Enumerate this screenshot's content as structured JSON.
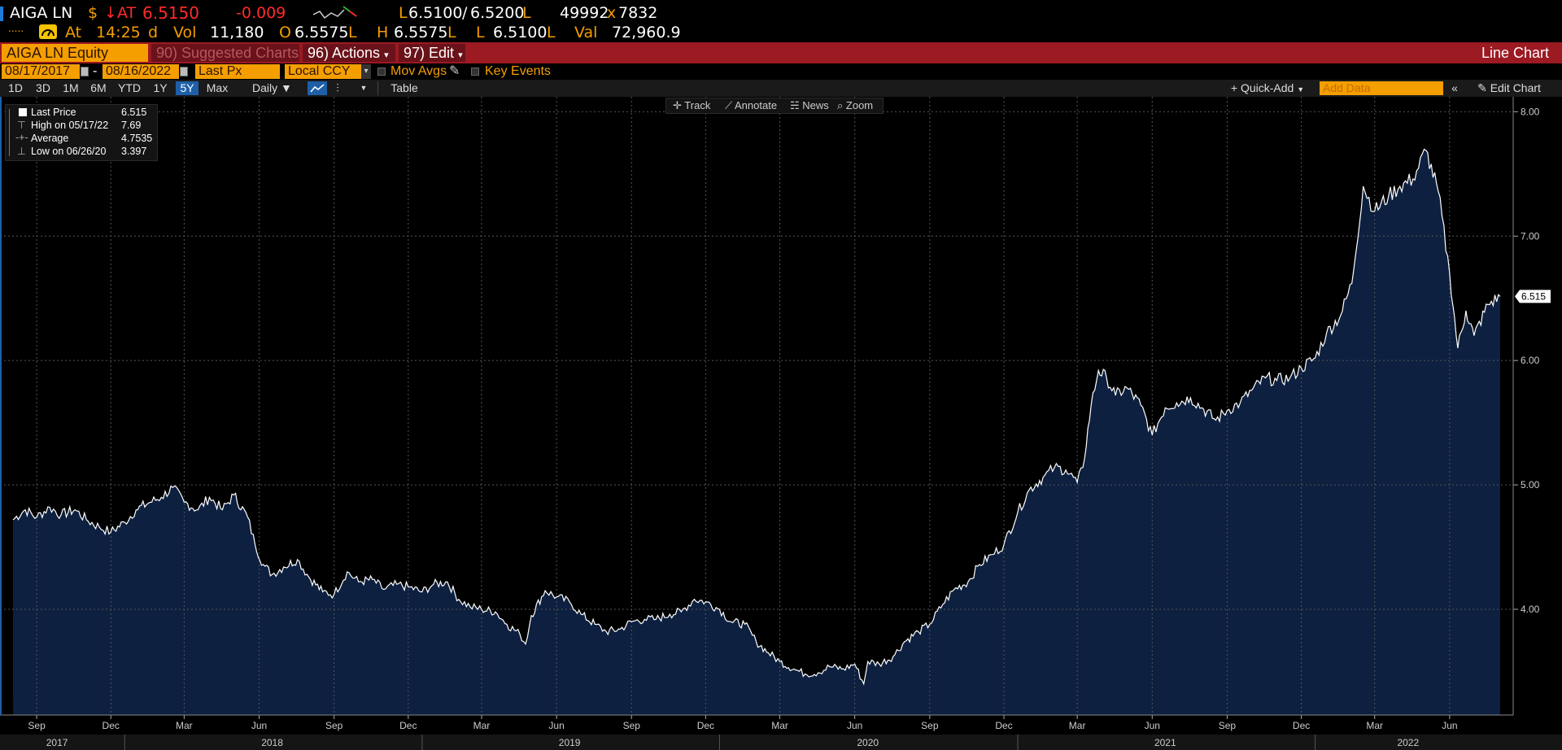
{
  "quote": {
    "ticker": "AIGA LN",
    "currency_sign": "$",
    "direction_arrow": "↓",
    "at_label": "AT",
    "last_price": "6.5150",
    "change": "-0.009",
    "bid": "6.5100",
    "bid_suffix": "L",
    "slash": "/",
    "ask": "6.5200",
    "ask_suffix": "L",
    "size": "49992",
    "size_x": "x",
    "size2": "7832",
    "dots": ".....",
    "at2": "At",
    "time": "14:25",
    "time_suffix": "d",
    "vol_label": "Vol",
    "vol": "11,180",
    "open_label": "O",
    "open": "6.5575",
    "open_suffix": "L",
    "high_label": "H",
    "high": "6.5575",
    "high_suffix": "L",
    "low_label": "L",
    "low": "6.5100",
    "low_suffix": "L",
    "val_label": "Val",
    "val": "72,960.9",
    "colors": {
      "price": "#ff2a2a",
      "label": "#f59e00",
      "value": "#ffffff"
    }
  },
  "redbar": {
    "security": "AIGA LN Equity",
    "suggested": "90) Suggested Charts",
    "actions": "96) Actions",
    "edit": "97) Edit",
    "title": "Line Chart"
  },
  "params": {
    "start_date": "08/17/2017",
    "dash": "-",
    "end_date": "08/16/2022",
    "field": "Last Px",
    "currency": "Local CCY",
    "mov_avgs": "Mov Avgs",
    "key_events": "Key Events"
  },
  "toolbar": {
    "periods": [
      "1D",
      "3D",
      "1M",
      "6M",
      "YTD",
      "1Y",
      "5Y",
      "Max"
    ],
    "active_period": "5Y",
    "frequency": "Daily",
    "table": "Table",
    "quick_add": "Quick-Add",
    "add_data_placeholder": "Add Data",
    "edit_chart": "Edit Chart"
  },
  "chart_buttons": {
    "track": "Track",
    "annotate": "Annotate",
    "news": "News",
    "zoom": "Zoom"
  },
  "legend": {
    "last_label": "Last Price",
    "last_value": "6.515",
    "high_label": "High on 05/17/22",
    "high_value": "7.69",
    "avg_label": "Average",
    "avg_value": "4.7535",
    "low_label": "Low on 06/26/20",
    "low_value": "3.397"
  },
  "chart_data": {
    "type": "area",
    "title": "",
    "xlabel": "",
    "ylabel": "",
    "y_ticks": [
      "8.00",
      "7.00",
      "6.00",
      "5.00",
      "4.00"
    ],
    "ylim": [
      3.15,
      8.12
    ],
    "last_value_label": "6.515",
    "x_month_labels": [
      "Sep",
      "Dec",
      "Mar",
      "Jun",
      "Sep",
      "Dec",
      "Mar",
      "Jun",
      "Sep",
      "Dec",
      "Mar",
      "Jun",
      "Sep",
      "Dec",
      "Mar",
      "Jun",
      "Sep",
      "Dec",
      "Mar",
      "Jun"
    ],
    "x_year_labels": [
      "2017",
      "2018",
      "2019",
      "2020",
      "2021",
      "2022"
    ],
    "series": [
      {
        "values": [
          [
            "2017-08-17",
            4.72
          ],
          [
            "2017-09-01",
            4.8
          ],
          [
            "2017-09-15",
            4.74
          ],
          [
            "2017-10-01",
            4.82
          ],
          [
            "2017-10-15",
            4.76
          ],
          [
            "2017-11-01",
            4.8
          ],
          [
            "2017-11-15",
            4.72
          ],
          [
            "2017-12-01",
            4.66
          ],
          [
            "2017-12-15",
            4.62
          ],
          [
            "2018-01-01",
            4.7
          ],
          [
            "2018-01-15",
            4.8
          ],
          [
            "2018-02-01",
            4.86
          ],
          [
            "2018-02-15",
            4.9
          ],
          [
            "2018-03-01",
            4.98
          ],
          [
            "2018-03-15",
            4.86
          ],
          [
            "2018-04-01",
            4.8
          ],
          [
            "2018-04-15",
            4.9
          ],
          [
            "2018-05-01",
            4.8
          ],
          [
            "2018-05-15",
            4.92
          ],
          [
            "2018-06-01",
            4.74
          ],
          [
            "2018-06-10",
            4.52
          ],
          [
            "2018-06-20",
            4.36
          ],
          [
            "2018-07-01",
            4.28
          ],
          [
            "2018-07-15",
            4.34
          ],
          [
            "2018-08-01",
            4.4
          ],
          [
            "2018-08-15",
            4.26
          ],
          [
            "2018-09-01",
            4.14
          ],
          [
            "2018-09-15",
            4.12
          ],
          [
            "2018-10-01",
            4.3
          ],
          [
            "2018-10-15",
            4.22
          ],
          [
            "2018-11-01",
            4.24
          ],
          [
            "2018-11-15",
            4.16
          ],
          [
            "2018-12-01",
            4.2
          ],
          [
            "2018-12-15",
            4.18
          ],
          [
            "2019-01-01",
            4.14
          ],
          [
            "2019-01-15",
            4.2
          ],
          [
            "2019-02-01",
            4.22
          ],
          [
            "2019-02-15",
            4.08
          ],
          [
            "2019-03-01",
            4.02
          ],
          [
            "2019-03-15",
            4.0
          ],
          [
            "2019-04-01",
            3.98
          ],
          [
            "2019-04-15",
            3.88
          ],
          [
            "2019-05-01",
            3.8
          ],
          [
            "2019-05-08",
            3.72
          ],
          [
            "2019-05-15",
            3.95
          ],
          [
            "2019-06-01",
            4.15
          ],
          [
            "2019-06-15",
            4.1
          ],
          [
            "2019-07-01",
            4.06
          ],
          [
            "2019-07-15",
            3.96
          ],
          [
            "2019-08-01",
            3.88
          ],
          [
            "2019-08-15",
            3.82
          ],
          [
            "2019-09-01",
            3.84
          ],
          [
            "2019-09-15",
            3.9
          ],
          [
            "2019-10-01",
            3.92
          ],
          [
            "2019-10-15",
            3.92
          ],
          [
            "2019-11-01",
            3.96
          ],
          [
            "2019-11-15",
            3.98
          ],
          [
            "2019-12-01",
            4.08
          ],
          [
            "2019-12-15",
            4.06
          ],
          [
            "2020-01-01",
            4.0
          ],
          [
            "2020-01-15",
            3.9
          ],
          [
            "2020-02-01",
            3.88
          ],
          [
            "2020-02-15",
            3.74
          ],
          [
            "2020-03-01",
            3.65
          ],
          [
            "2020-03-15",
            3.58
          ],
          [
            "2020-04-01",
            3.52
          ],
          [
            "2020-04-15",
            3.48
          ],
          [
            "2020-05-01",
            3.49
          ],
          [
            "2020-05-15",
            3.54
          ],
          [
            "2020-06-01",
            3.52
          ],
          [
            "2020-06-15",
            3.56
          ],
          [
            "2020-06-26",
            3.4
          ],
          [
            "2020-07-01",
            3.58
          ],
          [
            "2020-07-15",
            3.56
          ],
          [
            "2020-08-01",
            3.62
          ],
          [
            "2020-08-15",
            3.74
          ],
          [
            "2020-09-01",
            3.82
          ],
          [
            "2020-09-15",
            3.88
          ],
          [
            "2020-10-01",
            4.04
          ],
          [
            "2020-10-15",
            4.16
          ],
          [
            "2020-11-01",
            4.22
          ],
          [
            "2020-11-15",
            4.36
          ],
          [
            "2020-12-01",
            4.44
          ],
          [
            "2020-12-15",
            4.52
          ],
          [
            "2021-01-01",
            4.78
          ],
          [
            "2021-01-15",
            4.96
          ],
          [
            "2021-02-01",
            5.06
          ],
          [
            "2021-02-15",
            5.14
          ],
          [
            "2021-03-01",
            5.12
          ],
          [
            "2021-03-15",
            5.02
          ],
          [
            "2021-03-22",
            5.14
          ],
          [
            "2021-04-01",
            5.64
          ],
          [
            "2021-04-10",
            5.92
          ],
          [
            "2021-04-20",
            5.86
          ],
          [
            "2021-05-01",
            5.72
          ],
          [
            "2021-05-15",
            5.78
          ],
          [
            "2021-06-01",
            5.64
          ],
          [
            "2021-06-15",
            5.4
          ],
          [
            "2021-07-01",
            5.62
          ],
          [
            "2021-07-15",
            5.66
          ],
          [
            "2021-08-01",
            5.7
          ],
          [
            "2021-08-15",
            5.62
          ],
          [
            "2021-09-01",
            5.52
          ],
          [
            "2021-09-15",
            5.6
          ],
          [
            "2021-10-01",
            5.66
          ],
          [
            "2021-10-15",
            5.76
          ],
          [
            "2021-11-01",
            5.86
          ],
          [
            "2021-11-15",
            5.84
          ],
          [
            "2021-12-01",
            5.86
          ],
          [
            "2021-12-15",
            5.94
          ],
          [
            "2022-01-01",
            6.02
          ],
          [
            "2022-01-15",
            6.22
          ],
          [
            "2022-02-01",
            6.36
          ],
          [
            "2022-02-15",
            6.62
          ],
          [
            "2022-03-01",
            7.4
          ],
          [
            "2022-03-15",
            7.2
          ],
          [
            "2022-04-01",
            7.32
          ],
          [
            "2022-04-15",
            7.4
          ],
          [
            "2022-05-01",
            7.46
          ],
          [
            "2022-05-17",
            7.69
          ],
          [
            "2022-06-01",
            7.36
          ],
          [
            "2022-06-15",
            6.7
          ],
          [
            "2022-06-25",
            6.1
          ],
          [
            "2022-07-05",
            6.4
          ],
          [
            "2022-07-15",
            6.2
          ],
          [
            "2022-08-01",
            6.45
          ],
          [
            "2022-08-16",
            6.515
          ]
        ]
      }
    ],
    "colors": {
      "line": "#ffffff",
      "fill": "#0d2040",
      "grid": "#555555",
      "axis_text": "#cccccc"
    }
  }
}
